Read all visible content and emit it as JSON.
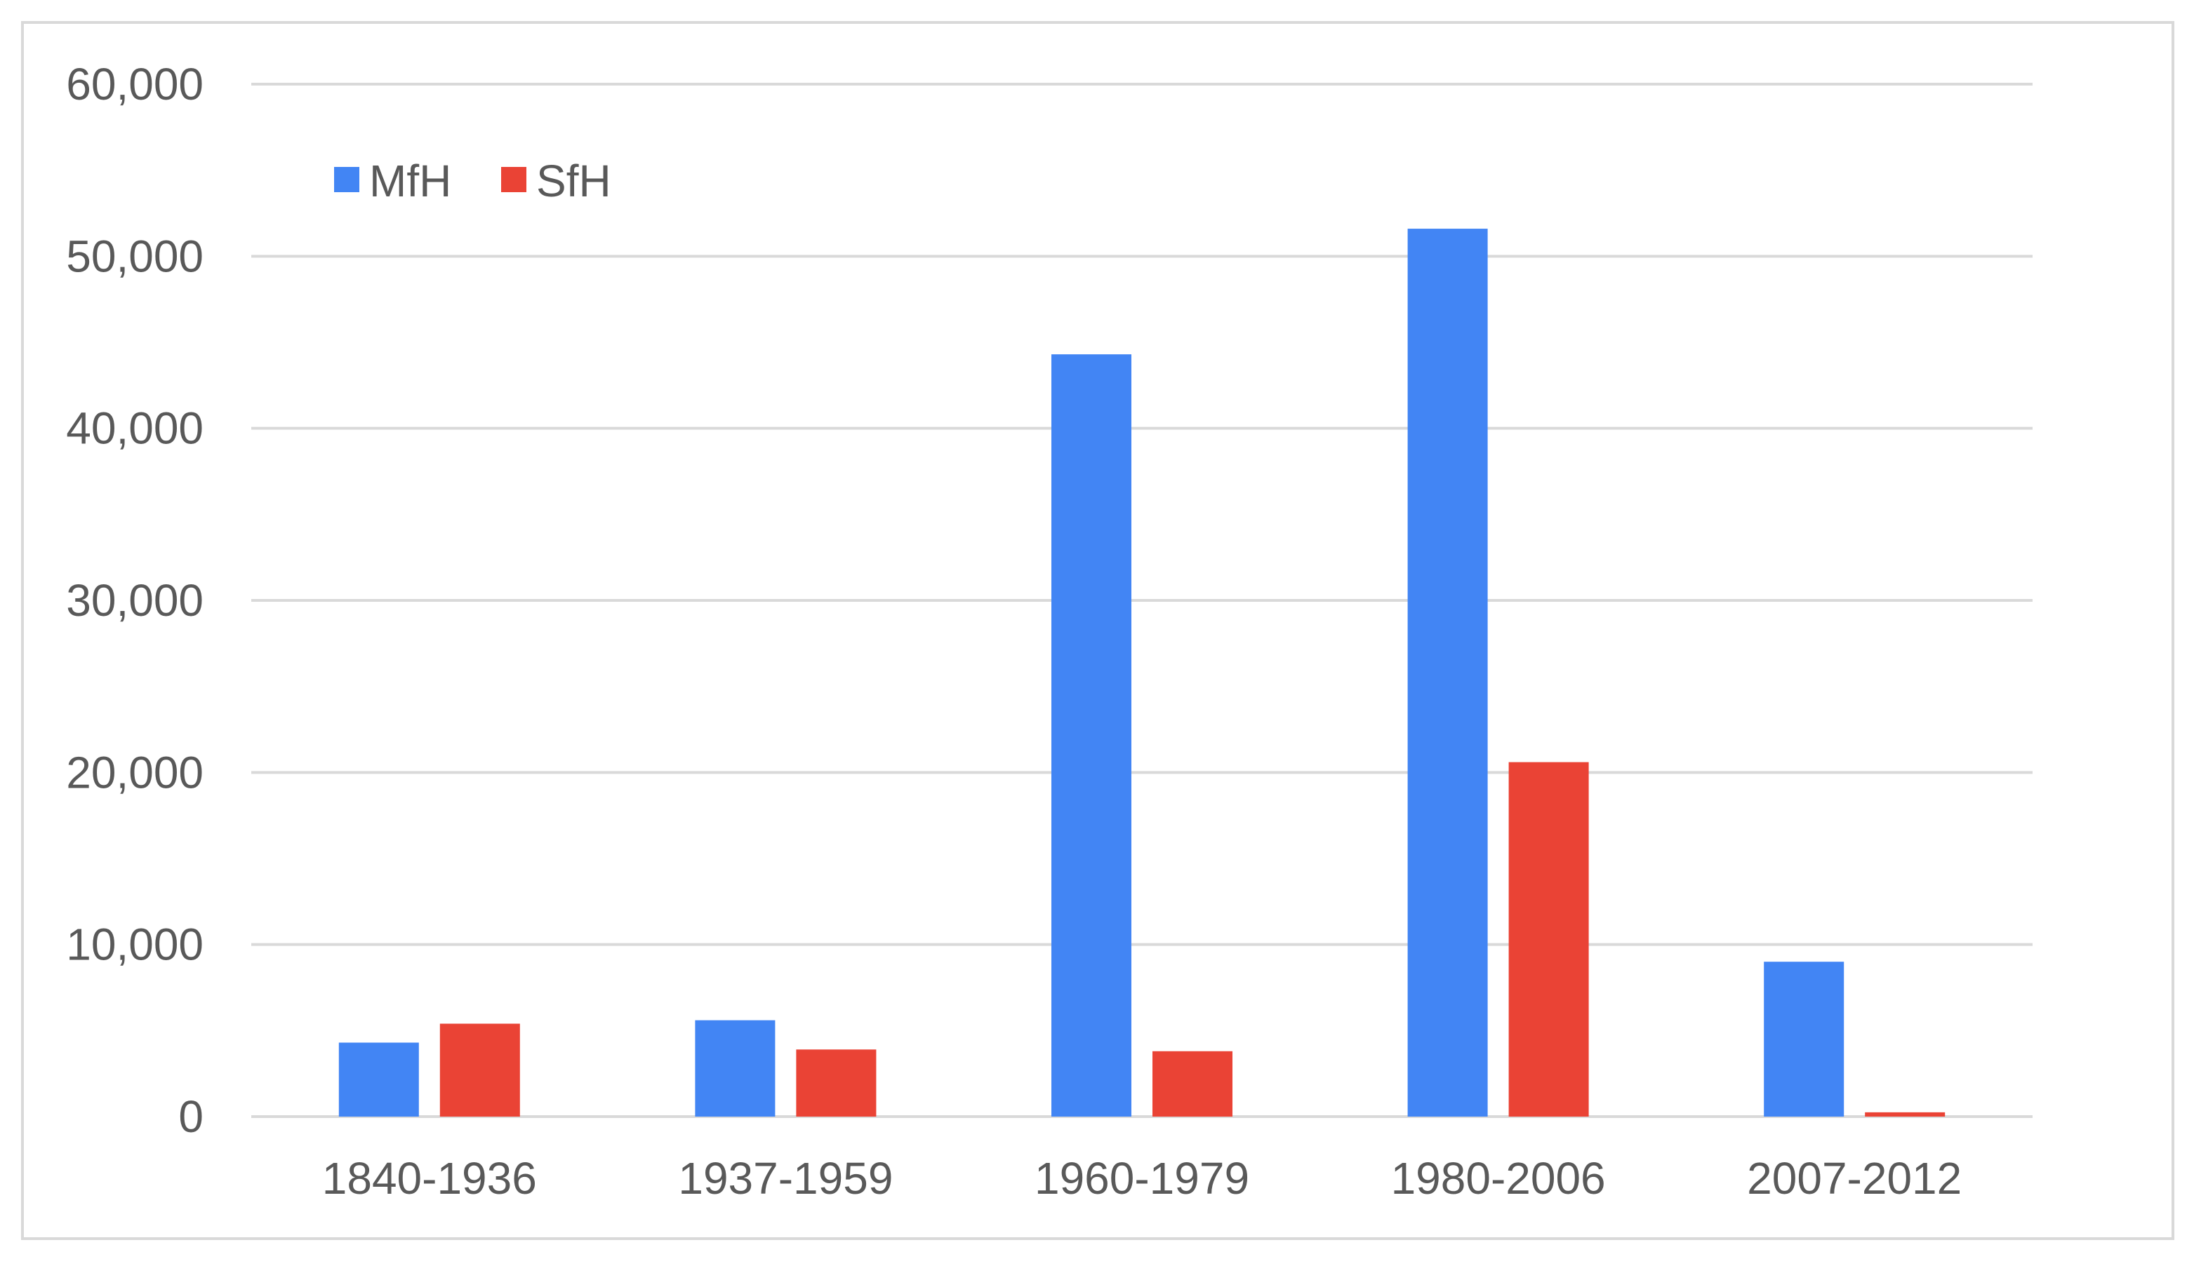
{
  "chart_data": {
    "type": "bar",
    "categories": [
      "1840-1936",
      "1937-1959",
      "1960-1979",
      "1980-2006",
      "2007-2012"
    ],
    "series": [
      {
        "name": "MfH",
        "color": "#4285f4",
        "values": [
          4300,
          5600,
          44300,
          51600,
          9000
        ]
      },
      {
        "name": "SfH",
        "color": "#ea4335",
        "values": [
          5400,
          3900,
          3800,
          20600,
          250
        ]
      }
    ],
    "title": "",
    "xlabel": "",
    "ylabel": "",
    "ylim": [
      0,
      60000
    ],
    "yticks": [
      {
        "value": 0,
        "label": "0"
      },
      {
        "value": 10000,
        "label": "10,000"
      },
      {
        "value": 20000,
        "label": "20,000"
      },
      {
        "value": 30000,
        "label": "30,000"
      },
      {
        "value": 40000,
        "label": "40,000"
      },
      {
        "value": 50000,
        "label": "50,000"
      },
      {
        "value": 60000,
        "label": "60,000"
      }
    ],
    "grid": true,
    "legend_position": "top-left"
  }
}
